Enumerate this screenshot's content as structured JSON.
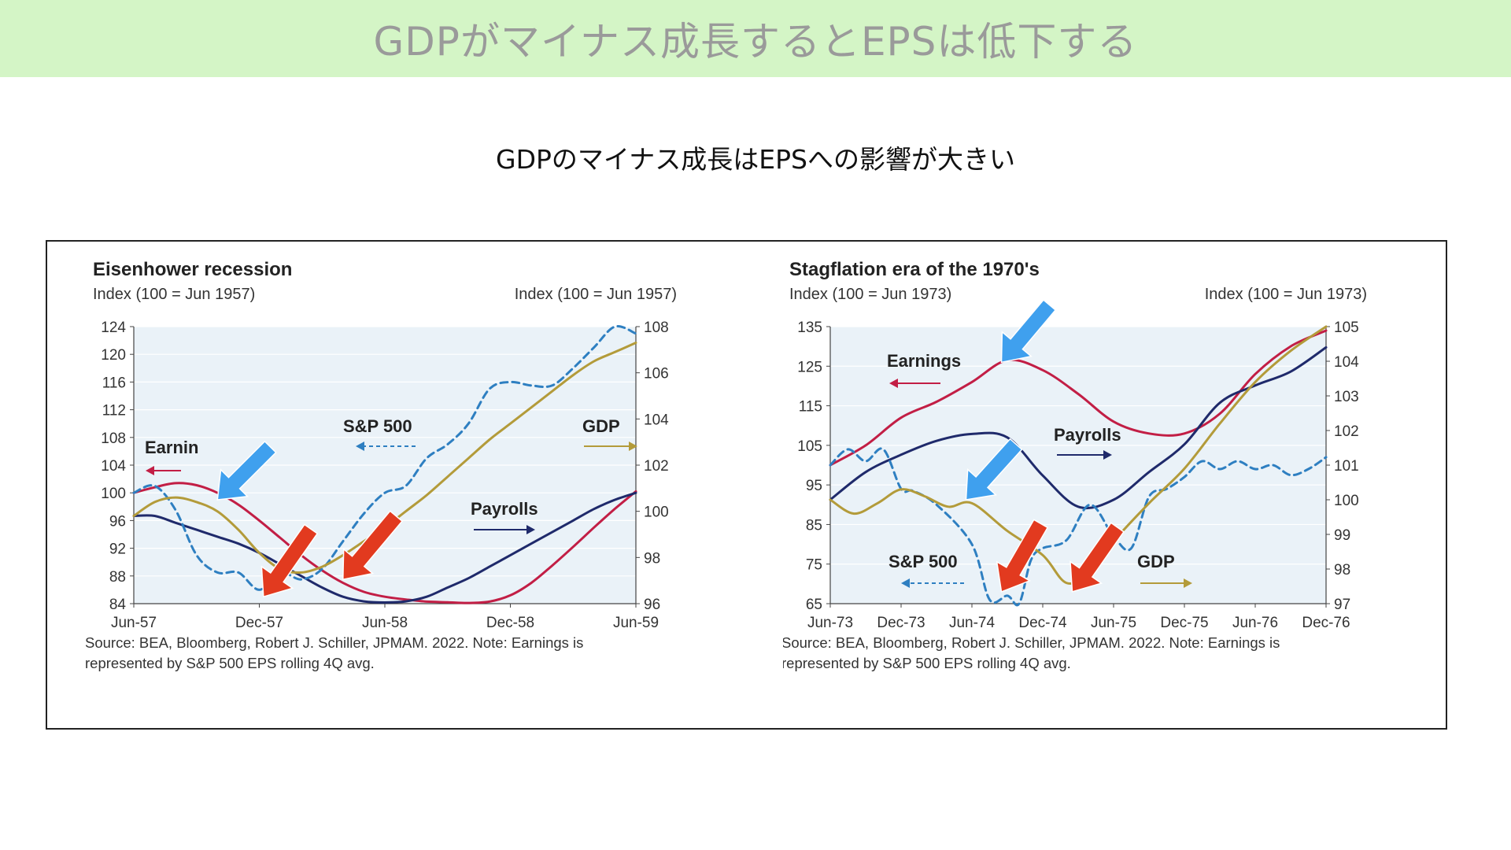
{
  "page": {
    "banner_title": "GDPがマイナス成長するとEPSは低下する",
    "subtitle": "GDPのマイナス成長はEPSへの影響が大きい"
  },
  "colors": {
    "banner_bg": "#d4f5c6",
    "earnings": "#c21e45",
    "payrolls": "#1f2a6b",
    "sp500": "#2e7fc1",
    "gdp": "#b39b3a",
    "plot_bg": "#eaf2f8",
    "arrow_red": "#e23a1f",
    "arrow_blue": "#3fa0ee"
  },
  "chart_data": [
    {
      "type": "line",
      "title": "Eisenhower recession",
      "left_axis_label": "Index (100 = Jun 1957)",
      "right_axis_label": "Index (100 = Jun 1957)",
      "x_ticks": [
        "Jun-57",
        "Dec-57",
        "Jun-58",
        "Dec-58",
        "Jun-59"
      ],
      "left_ylim": [
        84,
        124
      ],
      "left_ticks": [
        "124",
        "120",
        "116",
        "112",
        "108",
        "104",
        "100",
        "96",
        "92",
        "88",
        "84"
      ],
      "right_ylim": [
        96,
        108
      ],
      "right_ticks": [
        "108",
        "106",
        "104",
        "102",
        "100",
        "98",
        "96"
      ],
      "x_range": [
        0,
        24
      ],
      "source": "Source: BEA, Bloomberg, Robert J. Schiller, JPMAM. 2022. Note: Earnings is",
      "source2": "represented by S&P 500 EPS rolling 4Q avg.",
      "series": [
        {
          "name": "Earnings",
          "axis": "left",
          "style": "solid",
          "color": "#c21e45",
          "x": [
            0,
            1,
            2,
            3,
            4,
            5,
            6,
            7,
            8,
            9,
            10,
            11,
            12,
            13,
            14,
            15,
            16,
            17,
            18,
            19,
            20,
            21,
            22,
            23,
            24
          ],
          "y": [
            100,
            100.8,
            101.4,
            101.1,
            100,
            98.3,
            96,
            93.5,
            91,
            88.8,
            87,
            85.7,
            85,
            84.6,
            84.3,
            84.2,
            84.1,
            84.3,
            85.2,
            87,
            89.5,
            92.2,
            95,
            97.7,
            100.2
          ]
        },
        {
          "name": "Payrolls",
          "axis": "right",
          "style": "solid",
          "color": "#1f2a6b",
          "x": [
            0,
            1,
            2,
            3,
            4,
            5,
            6,
            7,
            8,
            9,
            10,
            11,
            12,
            13,
            14,
            15,
            16,
            17,
            18,
            19,
            20,
            21,
            22,
            23,
            24
          ],
          "y": [
            99.8,
            99.8,
            99.5,
            99.2,
            98.9,
            98.6,
            98.2,
            97.7,
            97.2,
            96.7,
            96.3,
            96.1,
            96.05,
            96.1,
            96.3,
            96.7,
            97.1,
            97.6,
            98.1,
            98.6,
            99.1,
            99.6,
            100.1,
            100.5,
            100.8
          ]
        },
        {
          "name": "S&P 500",
          "axis": "left",
          "style": "dashed",
          "color": "#2e7fc1",
          "x": [
            0,
            1,
            2,
            3,
            4,
            5,
            6,
            7,
            8,
            9,
            10,
            11,
            12,
            13,
            14,
            15,
            16,
            17,
            18,
            19,
            20,
            21,
            22,
            23,
            24
          ],
          "y": [
            100,
            101,
            97.5,
            91,
            88.5,
            88.5,
            86,
            88.5,
            87.5,
            89,
            93,
            97,
            100,
            101,
            105,
            107,
            110,
            115,
            116,
            115.5,
            115.5,
            118,
            121,
            124,
            123
          ]
        },
        {
          "name": "GDP",
          "axis": "right",
          "style": "solid",
          "color": "#b39b3a",
          "x": [
            0,
            1,
            2,
            3,
            4,
            5,
            6,
            7,
            8,
            9,
            10,
            11,
            12,
            13,
            14,
            15,
            16,
            17,
            18,
            19,
            20,
            21,
            22,
            23,
            24
          ],
          "y": [
            99.8,
            100.4,
            100.6,
            100.4,
            100,
            99.2,
            98.2,
            97.5,
            97.35,
            97.6,
            98.1,
            98.7,
            99.3,
            100,
            100.7,
            101.5,
            102.3,
            103.1,
            103.8,
            104.5,
            105.2,
            105.9,
            106.5,
            106.9,
            107.3
          ]
        }
      ],
      "labels": [
        {
          "text": "Earnin",
          "series": "Earnings"
        },
        {
          "text": "S&P 500",
          "series": "S&P 500"
        },
        {
          "text": "GDP",
          "series": "GDP"
        },
        {
          "text": "Payrolls",
          "series": "Payrolls"
        }
      ]
    },
    {
      "type": "line",
      "title": "Stagflation era of the 1970's",
      "left_axis_label": "Index (100 = Jun 1973)",
      "right_axis_label": "Index (100 = Jun 1973)",
      "x_ticks": [
        "Jun-73",
        "Dec-73",
        "Jun-74",
        "Dec-74",
        "Jun-75",
        "Dec-75",
        "Jun-76",
        "Dec-76"
      ],
      "left_ylim": [
        65,
        135
      ],
      "left_ticks": [
        "135",
        "125",
        "115",
        "105",
        "95",
        "85",
        "75",
        "65"
      ],
      "right_ylim": [
        97,
        105
      ],
      "right_ticks": [
        "105",
        "104",
        "103",
        "102",
        "101",
        "100",
        "99",
        "98",
        "97"
      ],
      "x_range": [
        0,
        42
      ],
      "source": "Source: BEA, Bloomberg, Robert J. Schiller, JPMAM. 2022. Note: Earnings is",
      "source2": "represented by S&P 500 EPS rolling 4Q avg.",
      "series": [
        {
          "name": "Earnings",
          "axis": "left",
          "style": "solid",
          "color": "#c21e45",
          "x": [
            0,
            3,
            6,
            9,
            12,
            15,
            18,
            21,
            24,
            27,
            30,
            33,
            36,
            39,
            42
          ],
          "y": [
            100,
            105,
            112,
            116,
            121,
            126.5,
            124,
            118,
            111,
            108,
            108,
            113,
            123,
            130,
            134
          ]
        },
        {
          "name": "Payrolls",
          "axis": "right",
          "style": "solid",
          "color": "#1f2a6b",
          "x": [
            0,
            3,
            6,
            9,
            12,
            15,
            18,
            21,
            24,
            27,
            30,
            33,
            36,
            39,
            42
          ],
          "y": [
            100,
            100.8,
            101.3,
            101.7,
            101.9,
            101.8,
            100.7,
            99.8,
            100,
            100.8,
            101.6,
            102.8,
            103.3,
            103.7,
            104.4
          ]
        },
        {
          "name": "S&P 500",
          "axis": "left",
          "style": "dashed",
          "color": "#2e7fc1",
          "x": [
            0,
            1.5,
            3,
            4.5,
            6,
            7,
            9,
            12,
            13.5,
            15,
            16,
            17,
            18,
            20,
            22,
            24,
            25.5,
            27,
            28.5,
            30,
            31.5,
            33,
            34.5,
            36,
            37.5,
            39,
            40.5,
            42
          ],
          "y": [
            100,
            104,
            101,
            104,
            94,
            93.5,
            90,
            80,
            66,
            67,
            65,
            76,
            79,
            81,
            90,
            82,
            79,
            92,
            94,
            97,
            101,
            99,
            101,
            99,
            100,
            97.5,
            99,
            102
          ]
        },
        {
          "name": "GDP",
          "axis": "right",
          "style": "solid",
          "color": "#b39b3a",
          "x": [
            0,
            2,
            4,
            6,
            8,
            10,
            12,
            15,
            18,
            20,
            22,
            24,
            27,
            30,
            33,
            36,
            39,
            42
          ],
          "y": [
            100,
            99.6,
            99.9,
            100.3,
            100.1,
            99.8,
            99.9,
            99.1,
            98.4,
            97.6,
            97.9,
            98.8,
            99.9,
            100.9,
            102.2,
            103.4,
            104.3,
            105
          ]
        }
      ],
      "labels": [
        {
          "text": "Earnings",
          "series": "Earnings"
        },
        {
          "text": "Payrolls",
          "series": "Payrolls"
        },
        {
          "text": "S&P 500",
          "series": "S&P 500"
        },
        {
          "text": "GDP",
          "series": "GDP"
        }
      ]
    }
  ]
}
